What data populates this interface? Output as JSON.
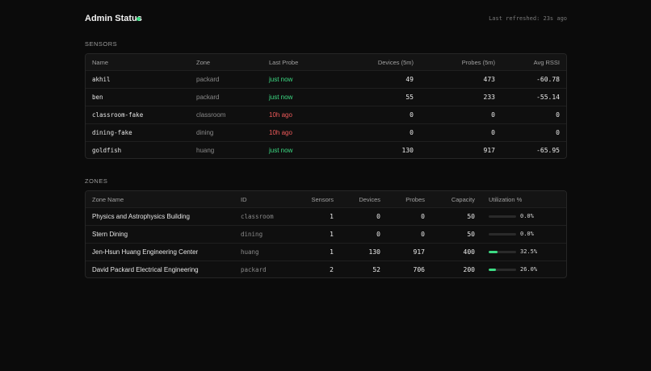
{
  "header": {
    "title": "Admin Status",
    "last_refreshed": "Last refreshed: 23s ago",
    "status_color": "#3ddc84"
  },
  "sensors": {
    "section_label": "SENSORS",
    "columns": [
      "Name",
      "Zone",
      "Last Probe",
      "Devices (5m)",
      "Probes (5m)",
      "Avg RSSI"
    ],
    "rows": [
      {
        "name": "akhil",
        "zone": "packard",
        "last_probe": "just now",
        "probe_status": "ok",
        "devices": "49",
        "probes": "473",
        "rssi": "-60.78"
      },
      {
        "name": "ben",
        "zone": "packard",
        "last_probe": "just now",
        "probe_status": "ok",
        "devices": "55",
        "probes": "233",
        "rssi": "-55.14"
      },
      {
        "name": "classroom-fake",
        "zone": "classroom",
        "last_probe": "10h ago",
        "probe_status": "stale",
        "devices": "0",
        "probes": "0",
        "rssi": "0"
      },
      {
        "name": "dining-fake",
        "zone": "dining",
        "last_probe": "10h ago",
        "probe_status": "stale",
        "devices": "0",
        "probes": "0",
        "rssi": "0"
      },
      {
        "name": "goldfish",
        "zone": "huang",
        "last_probe": "just now",
        "probe_status": "ok",
        "devices": "130",
        "probes": "917",
        "rssi": "-65.95"
      }
    ]
  },
  "zones": {
    "section_label": "ZONES",
    "columns": [
      "Zone Name",
      "ID",
      "Sensors",
      "Devices",
      "Probes",
      "Capacity",
      "Utilization %"
    ],
    "rows": [
      {
        "name": "Physics and Astrophysics Building",
        "id": "classroom",
        "sensors": "1",
        "devices": "0",
        "probes": "0",
        "capacity": "50",
        "utilization": 0.0,
        "utilization_label": "0.0%"
      },
      {
        "name": "Stern Dining",
        "id": "dining",
        "sensors": "1",
        "devices": "0",
        "probes": "0",
        "capacity": "50",
        "utilization": 0.0,
        "utilization_label": "0.0%"
      },
      {
        "name": "Jen-Hsun Huang Engineering Center",
        "id": "huang",
        "sensors": "1",
        "devices": "130",
        "probes": "917",
        "capacity": "400",
        "utilization": 32.5,
        "utilization_label": "32.5%"
      },
      {
        "name": "David Packard Electrical Engineering",
        "id": "packard",
        "sensors": "2",
        "devices": "52",
        "probes": "706",
        "capacity": "200",
        "utilization": 26.0,
        "utilization_label": "26.0%"
      }
    ]
  }
}
